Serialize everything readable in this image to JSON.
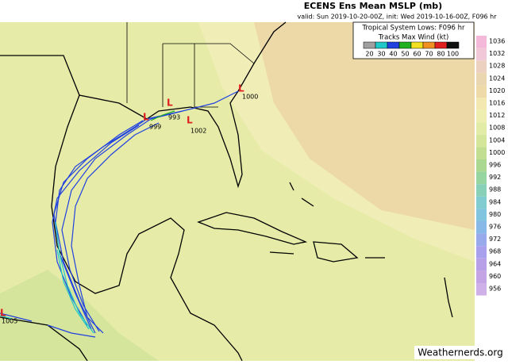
{
  "header": {
    "title": "ECENS Ens Mean MSLP (mb)",
    "subtitle": "valid: Sun 2019-10-20-00Z, init: Wed 2019-10-16-00Z, F096 hr"
  },
  "legend": {
    "title": "Tropical System Lows: F096 hr",
    "tracks_title": "Tracks Max Wind (kt)",
    "tracks": [
      {
        "label": "20",
        "color": "#a0a0a0"
      },
      {
        "label": "30",
        "color": "#20c8c8"
      },
      {
        "label": "40",
        "color": "#2040e0"
      },
      {
        "label": "50",
        "color": "#20b020"
      },
      {
        "label": "60",
        "color": "#f0e020"
      },
      {
        "label": "70",
        "color": "#f09020"
      },
      {
        "label": "80",
        "color": "#e02020"
      },
      {
        "label": "100",
        "color": "#101010"
      }
    ]
  },
  "colorbar": [
    {
      "label": "1036",
      "color": "#f4b8d8"
    },
    {
      "label": "1032",
      "color": "#f0c8d8"
    },
    {
      "label": "1028",
      "color": "#ecd0c0"
    },
    {
      "label": "1024",
      "color": "#ead6b0"
    },
    {
      "label": "1020",
      "color": "#eedaa8"
    },
    {
      "label": "1016",
      "color": "#f2e8b0"
    },
    {
      "label": "1012",
      "color": "#eeeeb0"
    },
    {
      "label": "1008",
      "color": "#e2eca6"
    },
    {
      "label": "1004",
      "color": "#d4e69a"
    },
    {
      "label": "1000",
      "color": "#c2de90"
    },
    {
      "label": "996",
      "color": "#aad890"
    },
    {
      "label": "992",
      "color": "#96d4a0"
    },
    {
      "label": "988",
      "color": "#88d0b8"
    },
    {
      "label": "984",
      "color": "#80ccd0"
    },
    {
      "label": "980",
      "color": "#80c4e0"
    },
    {
      "label": "976",
      "color": "#88b8e8"
    },
    {
      "label": "972",
      "color": "#98aaec"
    },
    {
      "label": "968",
      "color": "#a8a0ec"
    },
    {
      "label": "964",
      "color": "#b8a0e8"
    },
    {
      "label": "960",
      "color": "#c4a4e4"
    },
    {
      "label": "956",
      "color": "#d0b0e8"
    }
  ],
  "lows": [
    {
      "label": "1000"
    },
    {
      "label": "1002"
    },
    {
      "label": "993"
    },
    {
      "label": "999"
    },
    {
      "label": "1005"
    }
  ],
  "watermark": "Weathernerds.org"
}
